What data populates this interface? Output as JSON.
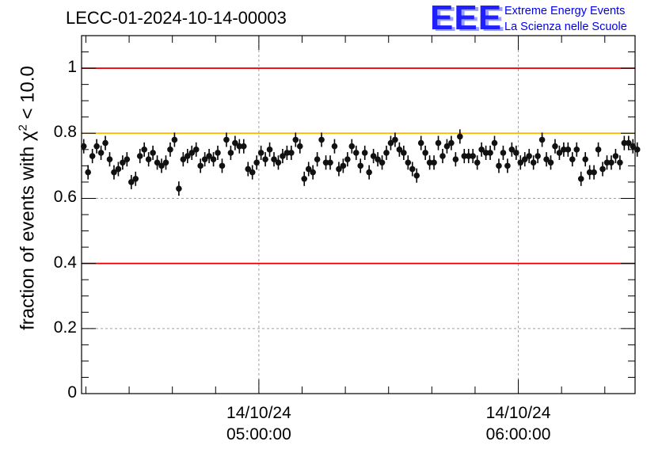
{
  "title": "LECC-01-2024-10-14-00003",
  "logo": {
    "mark": "EEE",
    "line1": "Extreme Energy Events",
    "line2": "La Scienza nelle Scuole"
  },
  "chart_data": {
    "type": "scatter",
    "title": "LECC-01-2024-10-14-00003",
    "ylabel_parts": {
      "prefix": "fraction of events with ",
      "symbol": "χ",
      "sup": "2",
      "suffix": " < 10.0"
    },
    "ylim": [
      0,
      1.1
    ],
    "yticks": [
      0,
      0.2,
      0.4,
      0.6,
      0.8,
      1
    ],
    "ytick_labels": [
      "0",
      "0.2",
      "0.4",
      "0.6",
      "0.8",
      "1"
    ],
    "xlim_minutes": [
      0,
      128
    ],
    "xticks": [
      {
        "pos": 41,
        "date": "14/10/24",
        "time": "05:00:00"
      },
      {
        "pos": 101,
        "date": "14/10/24",
        "time": "06:00:00"
      }
    ],
    "grid": true,
    "hlines": [
      {
        "y": 1.0,
        "color": "#e00000"
      },
      {
        "y": 0.8,
        "color": "#f5b800"
      },
      {
        "y": 0.4,
        "color": "#e00000"
      }
    ],
    "error": 0.022,
    "y": [
      0.76,
      0.68,
      0.73,
      0.76,
      0.74,
      0.77,
      0.72,
      0.68,
      0.69,
      0.71,
      0.72,
      0.65,
      0.66,
      0.73,
      0.75,
      0.72,
      0.74,
      0.71,
      0.7,
      0.71,
      0.75,
      0.78,
      0.63,
      0.72,
      0.73,
      0.74,
      0.75,
      0.7,
      0.72,
      0.73,
      0.72,
      0.74,
      0.7,
      0.78,
      0.74,
      0.77,
      0.76,
      0.76,
      0.69,
      0.68,
      0.71,
      0.74,
      0.72,
      0.75,
      0.72,
      0.71,
      0.73,
      0.74,
      0.74,
      0.78,
      0.76,
      0.66,
      0.69,
      0.68,
      0.72,
      0.78,
      0.71,
      0.71,
      0.76,
      0.69,
      0.7,
      0.72,
      0.76,
      0.74,
      0.7,
      0.74,
      0.68,
      0.73,
      0.72,
      0.71,
      0.74,
      0.77,
      0.78,
      0.75,
      0.74,
      0.71,
      0.69,
      0.67,
      0.77,
      0.74,
      0.71,
      0.71,
      0.77,
      0.73,
      0.76,
      0.77,
      0.72,
      0.79,
      0.73,
      0.73,
      0.73,
      0.71,
      0.75,
      0.74,
      0.74,
      0.77,
      0.7,
      0.74,
      0.7,
      0.75,
      0.74,
      0.71,
      0.72,
      0.73,
      0.71,
      0.73,
      0.78,
      0.72,
      0.71,
      0.76,
      0.74,
      0.75,
      0.75,
      0.72,
      0.75,
      0.66,
      0.72,
      0.68,
      0.68,
      0.75,
      0.69,
      0.71,
      0.71,
      0.73,
      0.71,
      0.77,
      0.77,
      0.76,
      0.75
    ]
  }
}
